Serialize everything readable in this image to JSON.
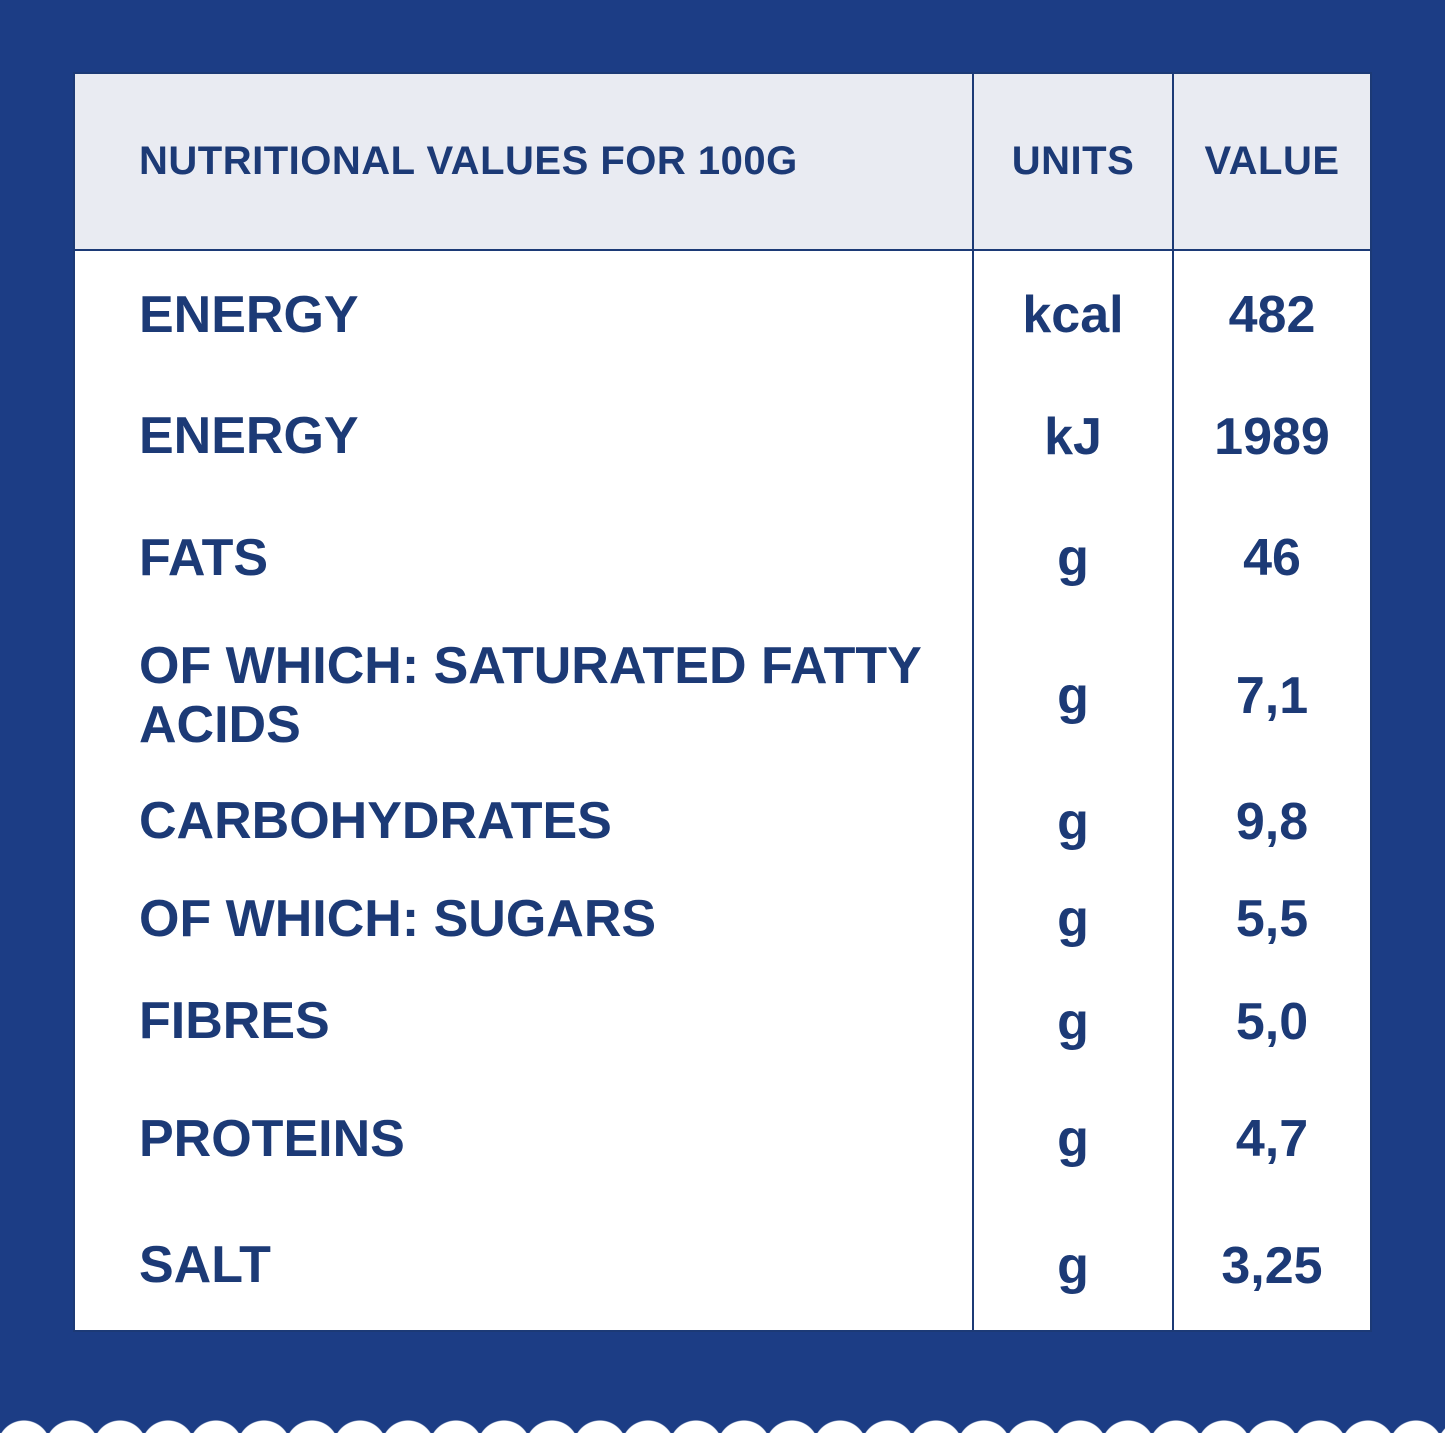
{
  "colors": {
    "bg_blue": "#1c3d85",
    "ink": "#1c3a76",
    "border_navy": "#1c3a76",
    "header_bg": "#e9ebf2",
    "cell_bg": "#ffffff"
  },
  "table": {
    "header": {
      "label": "NUTRITIONAL VALUES FOR 100G",
      "units": "UNITS",
      "value": "VALUE"
    },
    "rows": [
      {
        "label": "ENERGY",
        "unit": "kcal",
        "value": "482"
      },
      {
        "label": "ENERGY",
        "unit": "kJ",
        "value": "1989"
      },
      {
        "label": "FATS",
        "unit": "g",
        "value": "46"
      },
      {
        "label": "OF WHICH: SATURATED FATTY ACIDS",
        "unit": "g",
        "value": "7,1"
      },
      {
        "label": "CARBOHYDRATES",
        "unit": "g",
        "value": "9,8"
      },
      {
        "label": "OF WHICH: SUGARS",
        "unit": "g",
        "value": "5,5"
      },
      {
        "label": "FIBRES",
        "unit": "g",
        "value": "5,0"
      },
      {
        "label": "PROTEINS",
        "unit": "g",
        "value": "4,7"
      },
      {
        "label": "SALT",
        "unit": "g",
        "value": "3,25"
      }
    ]
  }
}
